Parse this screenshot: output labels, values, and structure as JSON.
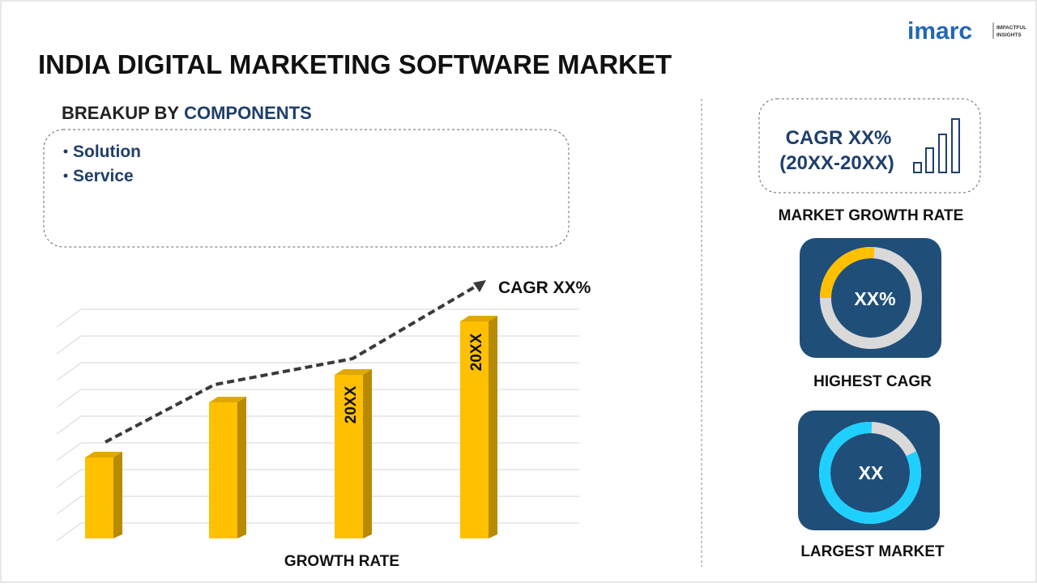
{
  "logo": {
    "brand": "imarc",
    "tagline": [
      "IMPACTFUL",
      "INSIGHTS"
    ]
  },
  "title": "INDIA DIGITAL MARKETING SOFTWARE MARKET",
  "breakup": {
    "heading_prefix": "BREAKUP BY",
    "heading_highlight": "COMPONENTS",
    "items": [
      "Solution",
      "Service"
    ]
  },
  "chart": {
    "cagr_label": "CAGR XX%",
    "bar_labels": [
      "20XX",
      "20XX"
    ],
    "x_label": "GROWTH RATE"
  },
  "panels": {
    "growth": {
      "line1": "CAGR XX%",
      "line2": "(20XX-20XX)",
      "caption": "MARKET GROWTH RATE"
    },
    "highest": {
      "value": "XX%",
      "caption": "HIGHEST CAGR"
    },
    "largest": {
      "value": "XX",
      "caption": "LARGEST MARKET"
    }
  }
}
